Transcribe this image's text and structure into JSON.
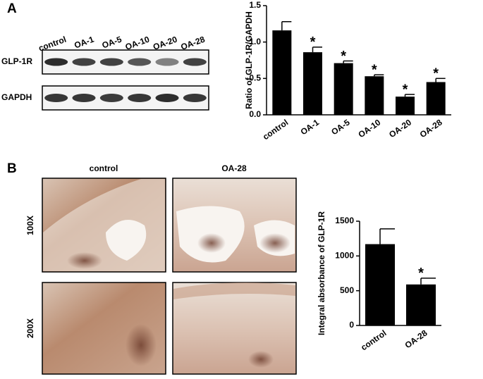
{
  "panels": {
    "a": "A",
    "b": "B"
  },
  "blot": {
    "lanes": [
      "control",
      "OA-1",
      "OA-5",
      "OA-10",
      "OA-20",
      "OA-28"
    ],
    "rows": [
      "GLP-1R",
      "GAPDH"
    ]
  },
  "histology": {
    "columns": [
      "control",
      "OA-28"
    ],
    "rows": [
      "100X",
      "200X"
    ]
  },
  "chart_data": [
    {
      "type": "bar",
      "ylabel": "Ratio of GLP-1R/GAPDH",
      "categories": [
        "control",
        "OA-1",
        "OA-5",
        "OA-10",
        "OA-20",
        "OA-28"
      ],
      "values": [
        1.16,
        0.86,
        0.71,
        0.53,
        0.25,
        0.45
      ],
      "errors": [
        0.12,
        0.07,
        0.03,
        0.02,
        0.03,
        0.05
      ],
      "significance": [
        null,
        "*",
        "*",
        "*",
        "*",
        "*"
      ],
      "color": "#000000",
      "ylim": [
        0,
        1.5
      ],
      "yticks": [
        {
          "value": 0,
          "label": "0.0"
        },
        0.5,
        {
          "value": 1,
          "label": "1.0"
        },
        1.5
      ]
    },
    {
      "type": "bar",
      "ylabel": "Integral absorbance of GLP-1R",
      "categories": [
        "control",
        "OA-28"
      ],
      "values": [
        1170,
        590
      ],
      "errors": [
        220,
        90
      ],
      "significance": [
        null,
        "*"
      ],
      "color": "#000000",
      "ylim": [
        0,
        1500
      ],
      "yticks": [
        0,
        500,
        1000,
        1500
      ]
    }
  ]
}
